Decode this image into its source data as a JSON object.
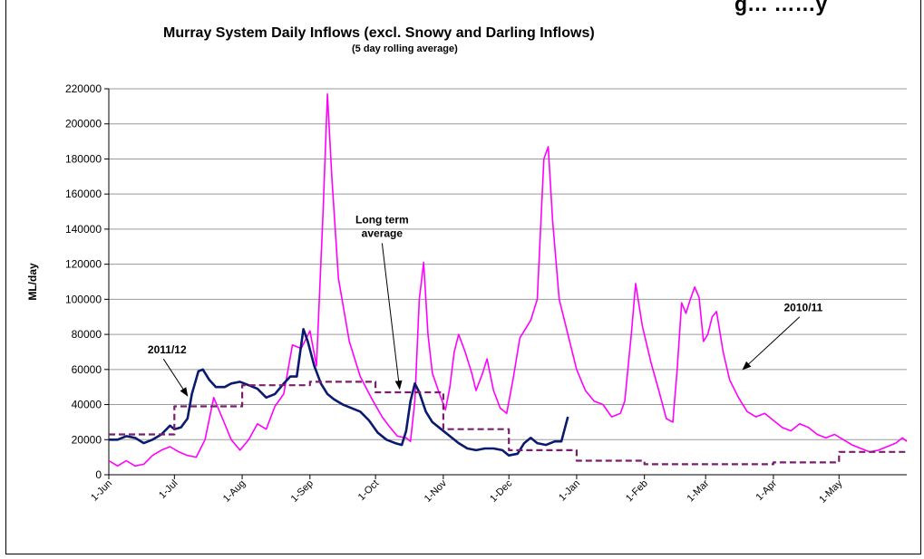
{
  "clipped_header_text": "g… ……y",
  "chart_data": {
    "type": "line",
    "title": "Murray System Daily Inflows (excl. Snowy and Darling Inflows)",
    "subtitle": "(5 day rolling average)",
    "ylabel": "ML/day",
    "xlabel": "",
    "ylim": [
      0,
      220000
    ],
    "yticks": [
      0,
      20000,
      40000,
      60000,
      80000,
      100000,
      120000,
      140000,
      160000,
      180000,
      200000,
      220000
    ],
    "xlim": [
      0,
      365
    ],
    "xtick_positions": [
      0,
      30,
      61,
      92,
      122,
      153,
      183,
      214,
      245,
      273,
      304,
      334
    ],
    "xtick_labels": [
      "1-Jun",
      "1-Jul",
      "1-Aug",
      "1-Sep",
      "1-Oct",
      "1-Nov",
      "1-Dec",
      "1-Jan",
      "1-Feb",
      "1-Mar",
      "1-Apr",
      "1-May"
    ],
    "grid": "horizontal",
    "colors": {
      "s2010": "#ff00ff",
      "s2011": "#0a1a6e",
      "lta": "#7a1f6e"
    },
    "series": [
      {
        "name": "2010/11",
        "style": "solid",
        "points": [
          [
            0,
            8000
          ],
          [
            4,
            5000
          ],
          [
            8,
            8000
          ],
          [
            12,
            5000
          ],
          [
            16,
            6000
          ],
          [
            20,
            11000
          ],
          [
            24,
            14000
          ],
          [
            28,
            16000
          ],
          [
            32,
            13000
          ],
          [
            36,
            11000
          ],
          [
            40,
            10000
          ],
          [
            44,
            20000
          ],
          [
            48,
            44000
          ],
          [
            52,
            32000
          ],
          [
            56,
            20000
          ],
          [
            60,
            14000
          ],
          [
            64,
            20000
          ],
          [
            68,
            29000
          ],
          [
            72,
            26000
          ],
          [
            76,
            39000
          ],
          [
            80,
            46000
          ],
          [
            84,
            74000
          ],
          [
            88,
            72000
          ],
          [
            92,
            82000
          ],
          [
            95,
            62000
          ],
          [
            98,
            150000
          ],
          [
            100,
            217000
          ],
          [
            102,
            170000
          ],
          [
            105,
            112000
          ],
          [
            110,
            76000
          ],
          [
            115,
            56000
          ],
          [
            120,
            44000
          ],
          [
            125,
            33000
          ],
          [
            128,
            28000
          ],
          [
            132,
            22000
          ],
          [
            136,
            21000
          ],
          [
            138,
            19000
          ],
          [
            140,
            42000
          ],
          [
            142,
            100000
          ],
          [
            144,
            121000
          ],
          [
            146,
            80000
          ],
          [
            148,
            58000
          ],
          [
            151,
            47000
          ],
          [
            154,
            37000
          ],
          [
            156,
            50000
          ],
          [
            158,
            70000
          ],
          [
            160,
            80000
          ],
          [
            163,
            70000
          ],
          [
            166,
            58000
          ],
          [
            168,
            48000
          ],
          [
            171,
            58000
          ],
          [
            173,
            66000
          ],
          [
            176,
            48000
          ],
          [
            179,
            38000
          ],
          [
            182,
            35000
          ],
          [
            185,
            55000
          ],
          [
            188,
            78000
          ],
          [
            190,
            82000
          ],
          [
            193,
            88000
          ],
          [
            196,
            100000
          ],
          [
            199,
            180000
          ],
          [
            201,
            187000
          ],
          [
            203,
            145000
          ],
          [
            206,
            100000
          ],
          [
            210,
            80000
          ],
          [
            214,
            60000
          ],
          [
            218,
            48000
          ],
          [
            222,
            42000
          ],
          [
            226,
            40000
          ],
          [
            230,
            33000
          ],
          [
            234,
            35000
          ],
          [
            236,
            42000
          ],
          [
            239,
            80000
          ],
          [
            241,
            109000
          ],
          [
            244,
            85000
          ],
          [
            248,
            64000
          ],
          [
            252,
            46000
          ],
          [
            255,
            32000
          ],
          [
            258,
            30000
          ],
          [
            260,
            60000
          ],
          [
            262,
            98000
          ],
          [
            264,
            92000
          ],
          [
            266,
            100000
          ],
          [
            268,
            107000
          ],
          [
            270,
            101000
          ],
          [
            272,
            76000
          ],
          [
            274,
            80000
          ],
          [
            276,
            90000
          ],
          [
            278,
            93000
          ],
          [
            281,
            70000
          ],
          [
            284,
            54000
          ],
          [
            288,
            44000
          ],
          [
            292,
            36000
          ],
          [
            296,
            33000
          ],
          [
            300,
            35000
          ],
          [
            304,
            31000
          ],
          [
            308,
            27000
          ],
          [
            312,
            25000
          ],
          [
            316,
            29000
          ],
          [
            320,
            27000
          ],
          [
            324,
            23000
          ],
          [
            328,
            21000
          ],
          [
            332,
            23000
          ],
          [
            336,
            20000
          ],
          [
            340,
            17000
          ],
          [
            344,
            15000
          ],
          [
            348,
            13000
          ],
          [
            352,
            14000
          ],
          [
            356,
            16000
          ],
          [
            360,
            18000
          ],
          [
            363,
            21000
          ],
          [
            365,
            19000
          ]
        ]
      },
      {
        "name": "2011/12",
        "style": "solid",
        "points": [
          [
            0,
            20000
          ],
          [
            4,
            20000
          ],
          [
            8,
            22000
          ],
          [
            12,
            21000
          ],
          [
            16,
            18000
          ],
          [
            20,
            20000
          ],
          [
            24,
            23000
          ],
          [
            28,
            28000
          ],
          [
            30,
            26000
          ],
          [
            33,
            27000
          ],
          [
            36,
            32000
          ],
          [
            38,
            46000
          ],
          [
            41,
            59000
          ],
          [
            43,
            60000
          ],
          [
            46,
            54000
          ],
          [
            49,
            50000
          ],
          [
            53,
            50000
          ],
          [
            56,
            52000
          ],
          [
            60,
            53000
          ],
          [
            64,
            51000
          ],
          [
            68,
            49000
          ],
          [
            72,
            44000
          ],
          [
            76,
            46000
          ],
          [
            80,
            52000
          ],
          [
            83,
            56000
          ],
          [
            86,
            56000
          ],
          [
            89,
            83000
          ],
          [
            91,
            76000
          ],
          [
            94,
            62000
          ],
          [
            97,
            52000
          ],
          [
            100,
            46000
          ],
          [
            103,
            43000
          ],
          [
            107,
            40000
          ],
          [
            111,
            38000
          ],
          [
            115,
            36000
          ],
          [
            119,
            31000
          ],
          [
            123,
            24000
          ],
          [
            127,
            20000
          ],
          [
            131,
            18000
          ],
          [
            134,
            17000
          ],
          [
            136,
            25000
          ],
          [
            138,
            42000
          ],
          [
            140,
            52000
          ],
          [
            142,
            47000
          ],
          [
            145,
            36000
          ],
          [
            148,
            30000
          ],
          [
            152,
            26000
          ],
          [
            156,
            22000
          ],
          [
            160,
            18000
          ],
          [
            164,
            15000
          ],
          [
            168,
            14000
          ],
          [
            172,
            15000
          ],
          [
            176,
            15000
          ],
          [
            180,
            14000
          ],
          [
            183,
            11000
          ],
          [
            187,
            12000
          ],
          [
            190,
            18000
          ],
          [
            193,
            21000
          ],
          [
            196,
            18000
          ],
          [
            200,
            17000
          ],
          [
            204,
            19000
          ],
          [
            207,
            19000
          ],
          [
            210,
            33000
          ]
        ]
      },
      {
        "name": "Long term average",
        "style": "dashed",
        "points": [
          [
            0,
            23000
          ],
          [
            30,
            23000
          ],
          [
            30,
            39000
          ],
          [
            61,
            39000
          ],
          [
            61,
            51000
          ],
          [
            92,
            51000
          ],
          [
            92,
            53000
          ],
          [
            122,
            53000
          ],
          [
            122,
            47000
          ],
          [
            153,
            47000
          ],
          [
            153,
            26000
          ],
          [
            183,
            26000
          ],
          [
            183,
            14000
          ],
          [
            214,
            14000
          ],
          [
            214,
            8000
          ],
          [
            245,
            8000
          ],
          [
            245,
            6000
          ],
          [
            273,
            6000
          ],
          [
            273,
            6000
          ],
          [
            304,
            6000
          ],
          [
            304,
            7000
          ],
          [
            334,
            7000
          ],
          [
            334,
            13000
          ],
          [
            365,
            13000
          ]
        ]
      }
    ],
    "annotations": [
      {
        "text": "2011/12",
        "arrow_from": [
          25,
          66000
        ],
        "arrow_to": [
          36,
          45000
        ]
      },
      {
        "text": "Long term",
        "text2": "average",
        "arrow_from": [
          125,
          132000
        ],
        "arrow_to": [
          133,
          49000
        ]
      },
      {
        "text": "2010/11",
        "arrow_from": [
          316,
          90000
        ],
        "arrow_to": [
          290,
          60000
        ]
      }
    ]
  }
}
